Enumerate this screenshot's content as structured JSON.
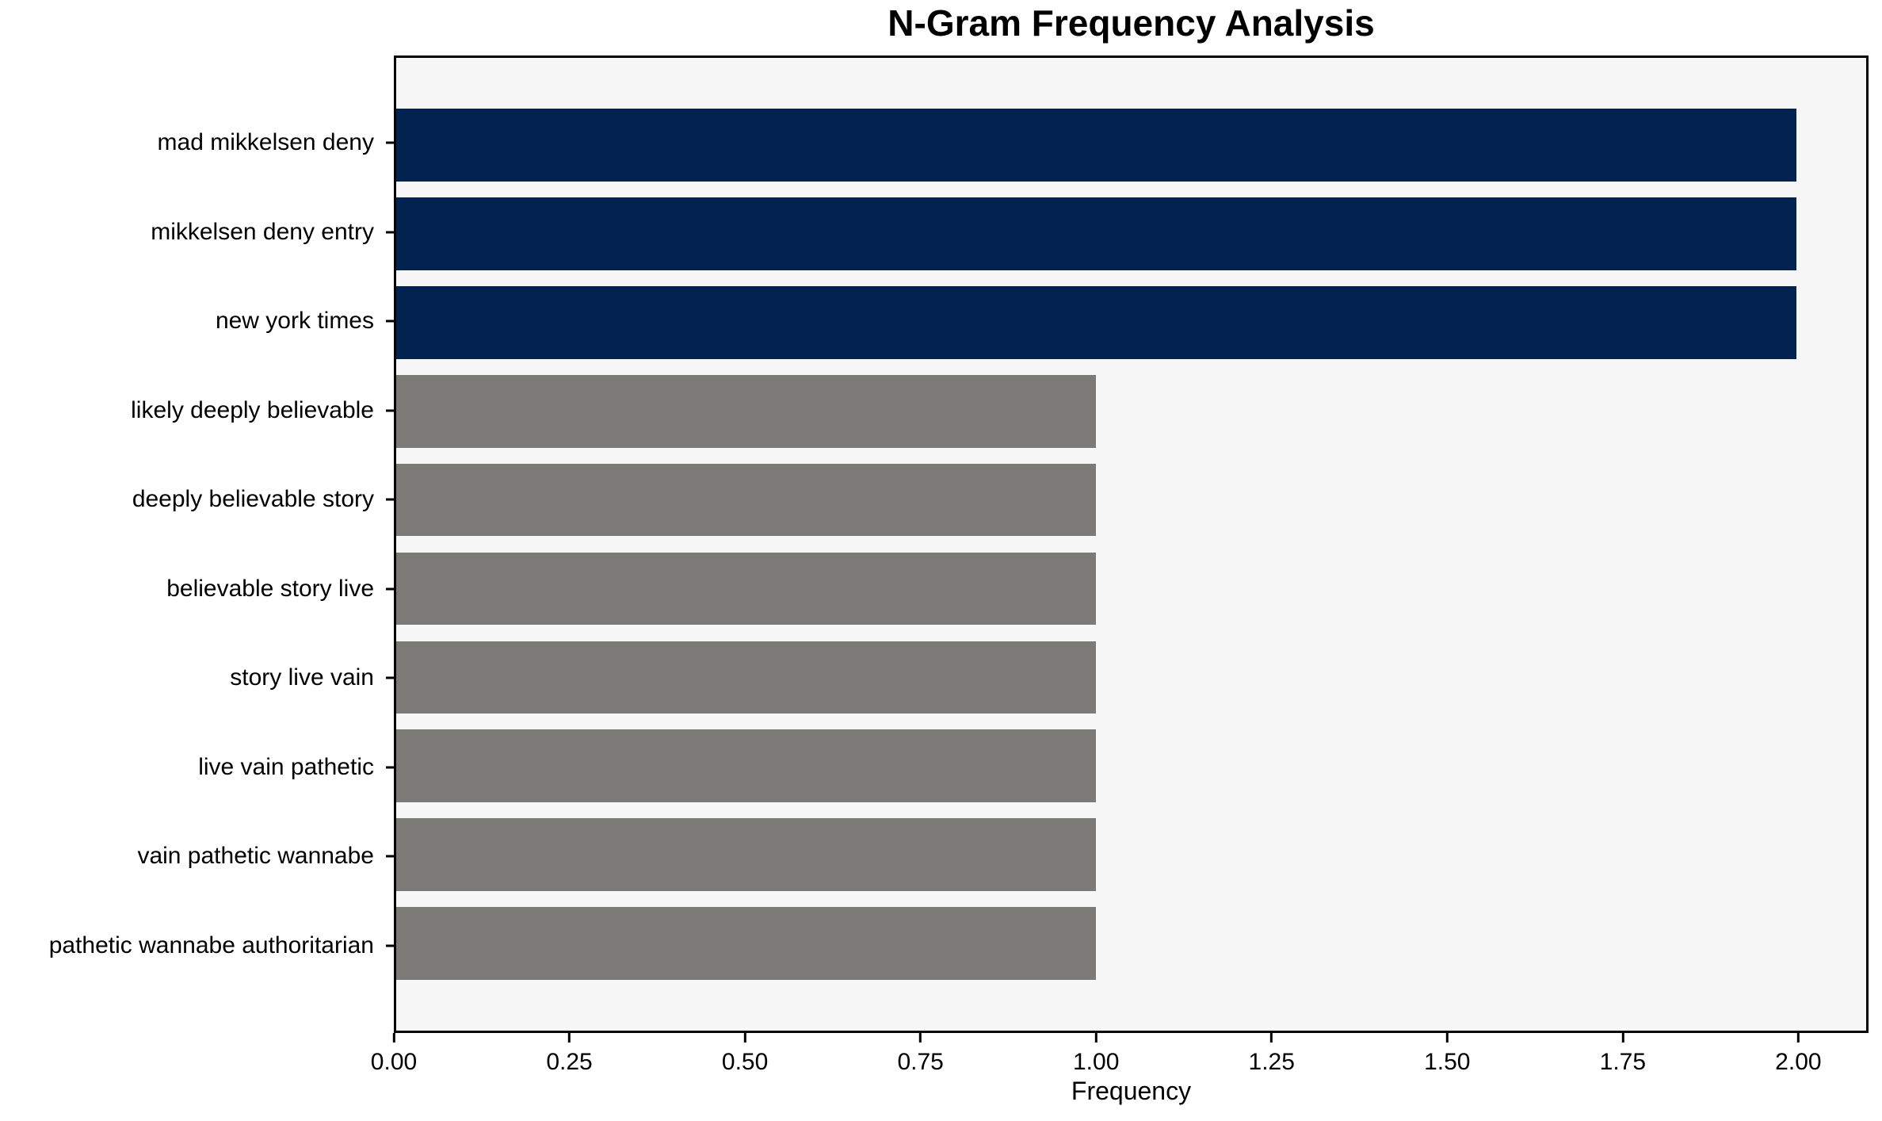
{
  "chart_data": {
    "type": "bar",
    "orientation": "horizontal",
    "title": "N-Gram Frequency Analysis",
    "xlabel": "Frequency",
    "ylabel": "",
    "categories": [
      "mad mikkelsen deny",
      "mikkelsen deny entry",
      "new york times",
      "likely deeply believable",
      "deeply believable story",
      "believable story live",
      "story live vain",
      "live vain pathetic",
      "vain pathetic wannabe",
      "pathetic wannabe authoritarian"
    ],
    "values": [
      2,
      2,
      2,
      1,
      1,
      1,
      1,
      1,
      1,
      1
    ],
    "bar_colors": [
      "#02234f",
      "#02234f",
      "#02234f",
      "#7b7a76",
      "#7b7a76",
      "#7b7a76",
      "#7b7a76",
      "#7b7a76",
      "#7b7a76",
      "#7b7a76"
    ],
    "highlight_color": "#02234f",
    "default_color": "#7b7a76",
    "xlim": [
      0,
      2.1
    ],
    "xticks": [
      "0.00",
      "0.25",
      "0.50",
      "0.75",
      "1.00",
      "1.25",
      "1.50",
      "1.75",
      "2.00"
    ],
    "xtick_values": [
      0,
      0.25,
      0.5,
      0.75,
      1.0,
      1.25,
      1.5,
      1.75,
      2.0
    ],
    "grid": false,
    "legend": false,
    "plot_bg": "#f7f7f7",
    "figure_bg": "#ffffff",
    "spine_color": "#000000"
  }
}
